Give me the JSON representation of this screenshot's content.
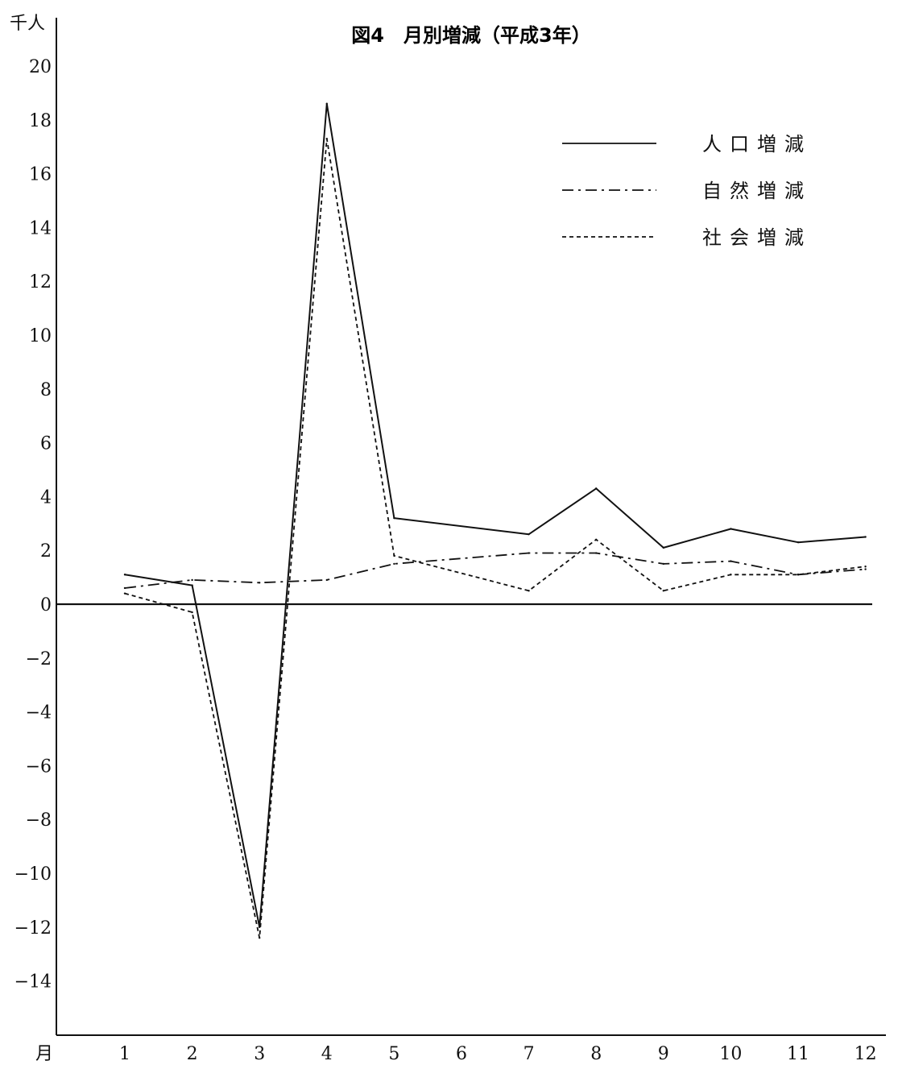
{
  "chart_data": {
    "type": "line",
    "title": "図4　月別増減（平成3年）",
    "ylabel": "千人",
    "xlabel": "月",
    "categories": [
      "1",
      "2",
      "3",
      "4",
      "5",
      "6",
      "7",
      "8",
      "9",
      "10",
      "11",
      "12"
    ],
    "yticks": [
      "20",
      "18",
      "16",
      "14",
      "12",
      "10",
      "8",
      "6",
      "4",
      "2",
      "0",
      "−2",
      "−4",
      "−6",
      "−8",
      "−10",
      "−12",
      "−14"
    ],
    "ylim": [
      -16,
      20.5
    ],
    "grid": false,
    "legend_position": "top-right",
    "series": [
      {
        "name": "人口増減",
        "style": "solid",
        "values": [
          1.1,
          0.7,
          -12,
          18.6,
          3.2,
          null,
          2.6,
          4.3,
          2.1,
          2.8,
          2.3,
          2.5
        ]
      },
      {
        "name": "自然増減",
        "style": "dashdot",
        "values": [
          0.6,
          0.9,
          0.8,
          0.9,
          1.5,
          null,
          1.9,
          1.9,
          1.5,
          1.6,
          1.1,
          1.3
        ]
      },
      {
        "name": "社会増減",
        "style": "dotted",
        "values": [
          0.4,
          -0.3,
          -12.4,
          17.3,
          1.8,
          null,
          0.5,
          2.4,
          0.5,
          1.1,
          1.1,
          1.4
        ]
      }
    ]
  }
}
